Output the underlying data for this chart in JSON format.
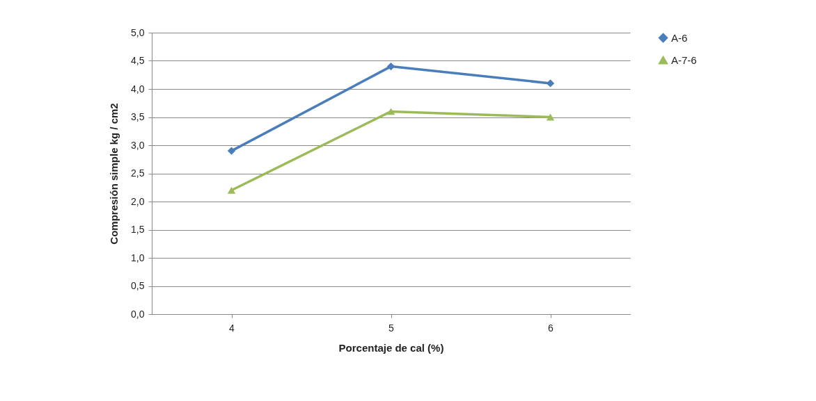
{
  "chart_data": {
    "type": "line",
    "xlabel": "Porcentaje de cal (%)",
    "ylabel": "Compresión simple kg / cm2",
    "categories": [
      "4",
      "5",
      "6"
    ],
    "series": [
      {
        "name": "A-6",
        "color": "#4a7ebb",
        "values": [
          2.9,
          4.4,
          4.1
        ],
        "marker": "diamond"
      },
      {
        "name": "A-7-6",
        "color": "#9bbb59",
        "values": [
          2.2,
          3.6,
          3.5
        ],
        "marker": "triangle"
      }
    ],
    "ylim": [
      0,
      5
    ],
    "yticks": [
      {
        "value": 0,
        "label": "0,0"
      },
      {
        "value": 0.5,
        "label": "0,5"
      },
      {
        "value": 1,
        "label": "1,0"
      },
      {
        "value": 1.5,
        "label": "1,5"
      },
      {
        "value": 2,
        "label": "2,0"
      },
      {
        "value": 2.5,
        "label": "2,5"
      },
      {
        "value": 3,
        "label": "3,0"
      },
      {
        "value": 3.5,
        "label": "3,5"
      },
      {
        "value": 4,
        "label": "4,0"
      },
      {
        "value": 4.5,
        "label": "4,5"
      },
      {
        "value": 5,
        "label": "5,0"
      }
    ],
    "grid": "y",
    "legend": "right",
    "line_style": "solid"
  }
}
